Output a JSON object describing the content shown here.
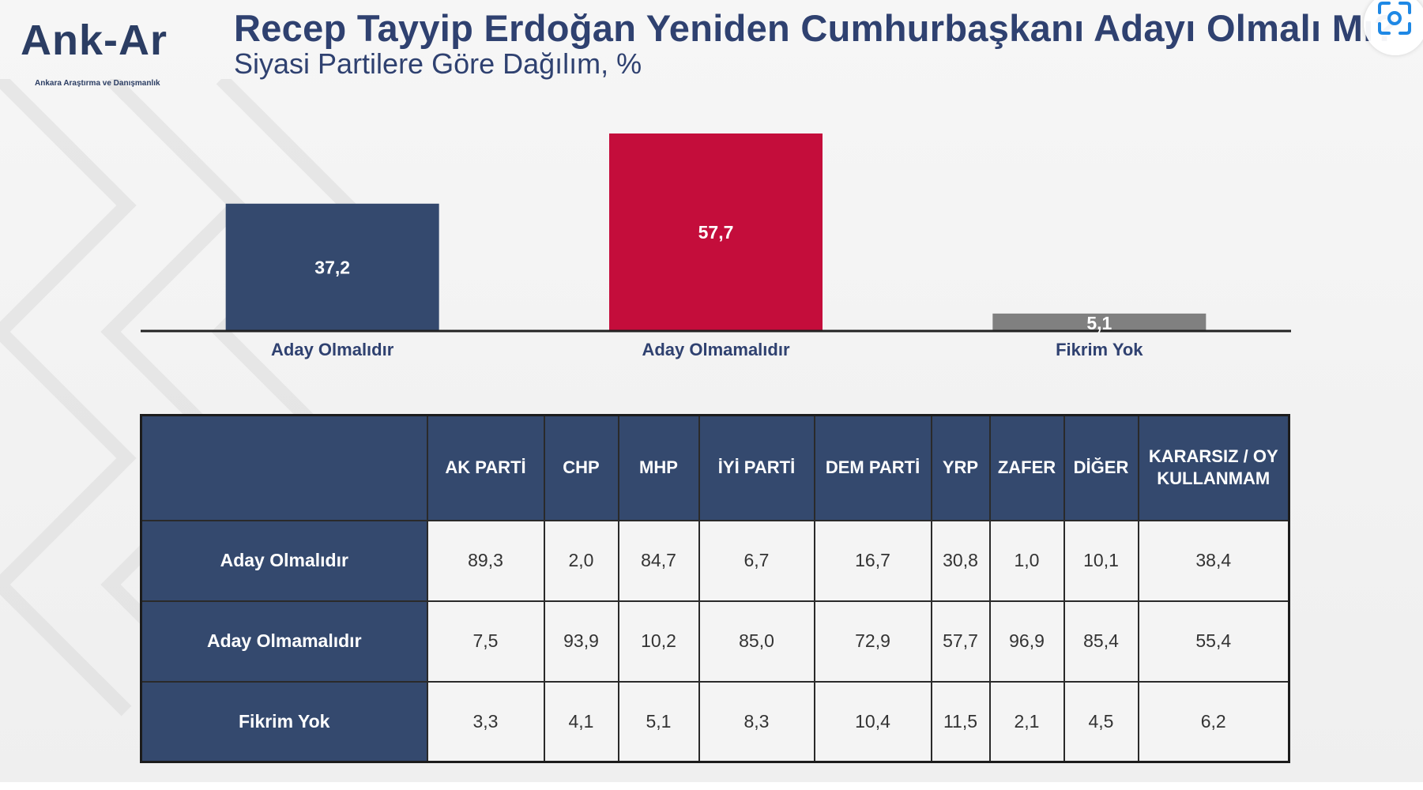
{
  "header": {
    "logo_text": "Ank-Ar",
    "logo_tagline": "Ankara Araştırma ve Danışmanlık",
    "title": "Recep Tayyip Erdoğan Yeniden Cumhurbaşkanı Adayı Olmalı Mı?",
    "subtitle": "Siyasi Partilere Göre Dağılım, %"
  },
  "corner_button": {
    "icon": "screen-capture-icon"
  },
  "colors": {
    "navy": "#34496e",
    "crimson": "#c40d3b",
    "gray": "#808080",
    "title": "#2f4170"
  },
  "chart_data": [
    {
      "type": "bar",
      "categories": [
        "Aday Olmalıdır",
        "Aday Olmamalıdır",
        "Fikrim Yok"
      ],
      "values": [
        37.2,
        57.7,
        5.1
      ],
      "value_labels": [
        "37,2",
        "57,7",
        "5,1"
      ],
      "bar_colors": [
        "#34496e",
        "#c40d3b",
        "#808080"
      ],
      "title": "Recep Tayyip Erdoğan Yeniden Cumhurbaşkanı Adayı Olmalı Mı?",
      "subtitle": "Siyasi Partilere Göre Dağılım, %",
      "ylim": [
        0,
        60
      ],
      "grid": false,
      "legend": "none"
    },
    {
      "type": "table",
      "columns": [
        "AK PARTİ",
        "CHP",
        "MHP",
        "İYİ PARTİ",
        "DEM PARTİ",
        "YRP",
        "ZAFER",
        "DİĞER",
        "KARARSIZ / OY KULLANMAM"
      ],
      "rows": [
        {
          "label": "Aday Olmalıdır",
          "values": [
            "89,3",
            "2,0",
            "84,7",
            "6,7",
            "16,7",
            "30,8",
            "1,0",
            "10,1",
            "38,4"
          ]
        },
        {
          "label": "Aday Olmamalıdır",
          "values": [
            "7,5",
            "93,9",
            "10,2",
            "85,0",
            "72,9",
            "57,7",
            "96,9",
            "85,4",
            "55,4"
          ]
        },
        {
          "label": "Fikrim Yok",
          "values": [
            "3,3",
            "4,1",
            "5,1",
            "8,3",
            "10,4",
            "11,5",
            "2,1",
            "4,5",
            "6,2"
          ]
        }
      ]
    }
  ]
}
